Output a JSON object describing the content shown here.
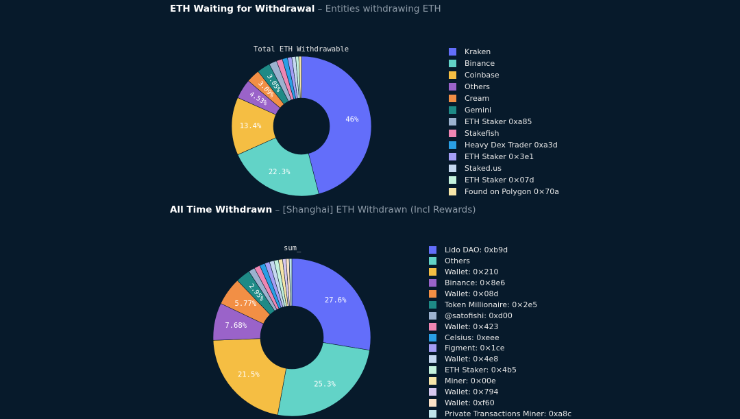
{
  "sections": [
    {
      "title_main": "ETH Waiting for Withdrawal",
      "title_sep": " – ",
      "title_sub": "Entities withdrawing ETH"
    },
    {
      "title_main": "All Time Withdrawn",
      "title_sep": " – ",
      "title_sub": "[Shanghai] ETH Withdrawn (Incl Rewards)"
    }
  ],
  "chart_data": [
    {
      "type": "pie",
      "title": "Total ETH Withdrawable",
      "hole": true,
      "legend_position": "right",
      "categories": [
        "Kraken",
        "Binance",
        "Coinbase",
        "Others",
        "Cream",
        "Gemini",
        "ETH Staker 0xa85",
        "Stakefish",
        "Heavy Dex Trader 0xa3d",
        "ETH Staker 0×3e1",
        "Staked.us",
        "ETH Staker 0×07d",
        "Found on Polygon 0×70a"
      ],
      "values": [
        46,
        22.3,
        13.4,
        4.53,
        3.09,
        3.05,
        1.8,
        1.4,
        1.2,
        1.0,
        0.9,
        0.7,
        0.63
      ],
      "labels": [
        "46%",
        "22.3%",
        "13.4%",
        "4.53%",
        "3.09%",
        "3.05%",
        "",
        "",
        "",
        "",
        "",
        "",
        ""
      ],
      "colors": [
        "#636efa",
        "#62d3c7",
        "#f5be43",
        "#9a63c9",
        "#f28f45",
        "#1e8a86",
        "#9cb2cf",
        "#ef86b3",
        "#2a9fe5",
        "#a49ef5",
        "#c5d8f0",
        "#c4f2dd",
        "#f7e6a8"
      ]
    },
    {
      "type": "pie",
      "title": "sum_",
      "hole": true,
      "legend_position": "right",
      "categories": [
        "Lido DAO: 0xb9d",
        "Others",
        "Wallet: 0×210",
        "Binance: 0×8e6",
        "Wallet: 0×08d",
        "Token Millionaire: 0×2e5",
        "@satofishi: 0xd00",
        "Wallet: 0×423",
        "Celsius: 0xeee",
        "Figment: 0×1ce",
        "Wallet: 0×4e8",
        "ETH Staker: 0×4b5",
        "Miner: 0×00e",
        "Wallet: 0×794",
        "Wallet: 0xf60",
        "Private Transactions Miner: 0xa8c"
      ],
      "values": [
        27.6,
        25.3,
        21.5,
        7.68,
        5.77,
        2.95,
        1.3,
        1.2,
        1.1,
        1.0,
        0.95,
        0.9,
        0.85,
        0.7,
        0.65,
        0.55
      ],
      "labels": [
        "27.6%",
        "25.3%",
        "21.5%",
        "7.68%",
        "5.77%",
        "2.95%",
        "",
        "",
        "",
        "",
        "",
        "",
        "",
        "",
        "",
        ""
      ],
      "colors": [
        "#636efa",
        "#62d3c7",
        "#f5be43",
        "#9a63c9",
        "#f28f45",
        "#1e8a86",
        "#9cb2cf",
        "#ef86b3",
        "#2a9fe5",
        "#a49ef5",
        "#c5d8f0",
        "#c4f2dd",
        "#f7e6a8",
        "#d6c8ef",
        "#fbe1c6",
        "#bfe3ea"
      ]
    }
  ]
}
